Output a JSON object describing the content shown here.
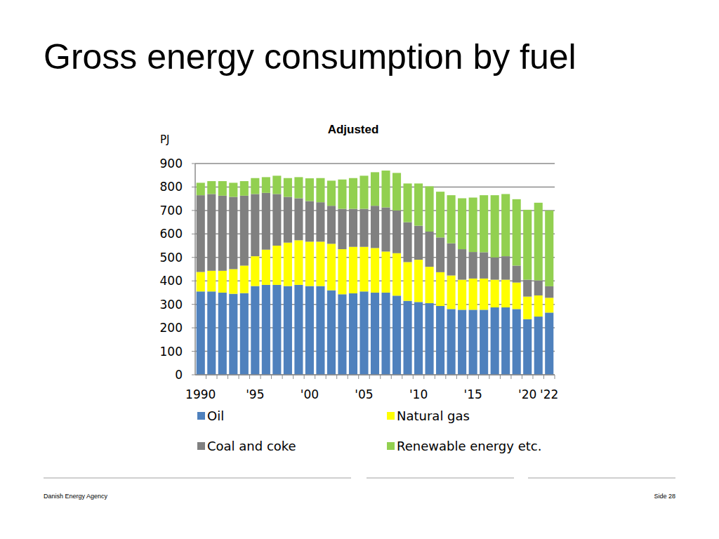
{
  "page": {
    "heading": "Gross energy consumption by fuel",
    "footer_left": "Danish Energy Agency",
    "footer_right": "Side 28"
  },
  "chart_data": {
    "type": "bar",
    "stacked": true,
    "title": "Adjusted",
    "y_label": "PJ",
    "categories": [
      "1990",
      null,
      null,
      null,
      null,
      "'95",
      null,
      null,
      null,
      null,
      "'00",
      null,
      null,
      null,
      null,
      "'05",
      null,
      null,
      null,
      null,
      "'10",
      null,
      null,
      null,
      null,
      "'15",
      null,
      null,
      null,
      null,
      "'20",
      null,
      "'22"
    ],
    "series": [
      {
        "name": "Oil",
        "color": "#4f81bd",
        "values": [
          355,
          355,
          350,
          345,
          348,
          378,
          383,
          383,
          378,
          383,
          378,
          378,
          360,
          343,
          347,
          355,
          350,
          350,
          337,
          315,
          310,
          305,
          293,
          280,
          277,
          277,
          277,
          287,
          287,
          280,
          237,
          248,
          265
        ]
      },
      {
        "name": "Natural gas",
        "color": "#ffff00",
        "values": [
          83,
          88,
          93,
          105,
          117,
          127,
          150,
          167,
          185,
          190,
          189,
          189,
          198,
          192,
          198,
          190,
          190,
          175,
          181,
          165,
          180,
          155,
          144,
          143,
          128,
          133,
          133,
          118,
          118,
          113,
          96,
          90,
          63
        ]
      },
      {
        "name": "Coal and coke",
        "color": "#808080",
        "values": [
          327,
          327,
          320,
          308,
          298,
          265,
          242,
          220,
          195,
          179,
          173,
          168,
          162,
          172,
          162,
          162,
          180,
          188,
          182,
          170,
          145,
          150,
          148,
          137,
          130,
          113,
          112,
          95,
          100,
          72,
          72,
          64,
          49
        ]
      },
      {
        "name": "Renewable energy etc.",
        "color": "#92d050",
        "values": [
          53,
          55,
          62,
          60,
          62,
          68,
          67,
          78,
          80,
          90,
          97,
          103,
          107,
          125,
          131,
          141,
          143,
          157,
          160,
          165,
          180,
          193,
          195,
          205,
          217,
          232,
          243,
          265,
          265,
          283,
          298,
          331,
          323
        ]
      }
    ],
    "ylim": [
      0,
      900
    ],
    "yticks": [
      0,
      100,
      200,
      300,
      400,
      500,
      600,
      700,
      800,
      900
    ],
    "grid": true,
    "legend": "bottom"
  }
}
